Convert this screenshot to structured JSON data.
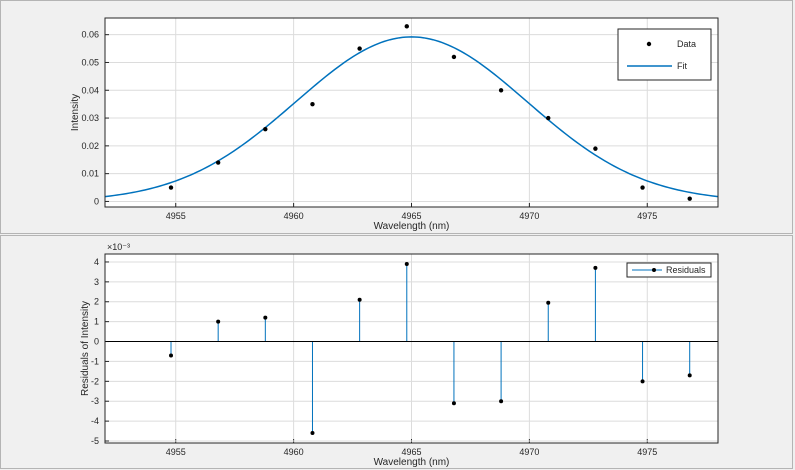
{
  "chart_data": [
    {
      "type": "line",
      "xlabel": "Wavelength (nm)",
      "ylabel": "Intensity",
      "xlim": [
        4952,
        4978
      ],
      "ylim": [
        -0.002,
        0.066
      ],
      "xticks": [
        4955,
        4960,
        4965,
        4970,
        4975
      ],
      "yticks": [
        0,
        0.01,
        0.02,
        0.03,
        0.04,
        0.05,
        0.06
      ],
      "xtick_labels": [
        "4955",
        "4960",
        "4965",
        "4970",
        "4975"
      ],
      "ytick_labels": [
        "0",
        "0.01",
        "0.02",
        "0.03",
        "0.04",
        "0.05",
        "0.06"
      ],
      "grid": true,
      "legend_position": "top-right",
      "series": [
        {
          "name": "Data",
          "style": "markers",
          "color": "#000000",
          "x": [
            4954.8,
            4956.8,
            4958.8,
            4960.8,
            4962.8,
            4964.8,
            4966.8,
            4968.8,
            4970.8,
            4972.8,
            4974.8,
            4976.8
          ],
          "y": [
            0.005,
            0.014,
            0.026,
            0.035,
            0.055,
            0.063,
            0.052,
            0.04,
            0.03,
            0.019,
            0.005,
            0.001
          ]
        },
        {
          "name": "Fit",
          "style": "line",
          "color": "#0072bd",
          "model": "gaussian",
          "amplitude": 0.0592,
          "center": 4965.0,
          "sigma": 4.9
        }
      ]
    },
    {
      "type": "stem",
      "xlabel": "Wavelength (nm)",
      "ylabel": "Residuals of Intensity",
      "exponent_label": "×10⁻³",
      "xlim": [
        4952,
        4978
      ],
      "ylim": [
        -5.1,
        4.4
      ],
      "xticks": [
        4955,
        4960,
        4965,
        4970,
        4975
      ],
      "yticks": [
        -5,
        -4,
        -3,
        -2,
        -1,
        0,
        1,
        2,
        3,
        4
      ],
      "xtick_labels": [
        "4955",
        "4960",
        "4965",
        "4970",
        "4975"
      ],
      "ytick_labels": [
        "-5",
        "-4",
        "-3",
        "-2",
        "-1",
        "0",
        "1",
        "2",
        "3",
        "4"
      ],
      "grid": true,
      "legend_position": "top-right",
      "series": [
        {
          "name": "Residuals",
          "color": "#0072bd",
          "marker_color": "#000000",
          "x": [
            4954.8,
            4956.8,
            4958.8,
            4960.8,
            4962.8,
            4964.8,
            4966.8,
            4968.8,
            4970.8,
            4972.8,
            4974.8,
            4976.8
          ],
          "y": [
            -0.7,
            1.0,
            1.2,
            -4.6,
            2.1,
            3.9,
            -3.1,
            -3.0,
            1.95,
            3.7,
            -2.0,
            -1.7
          ]
        }
      ]
    }
  ]
}
